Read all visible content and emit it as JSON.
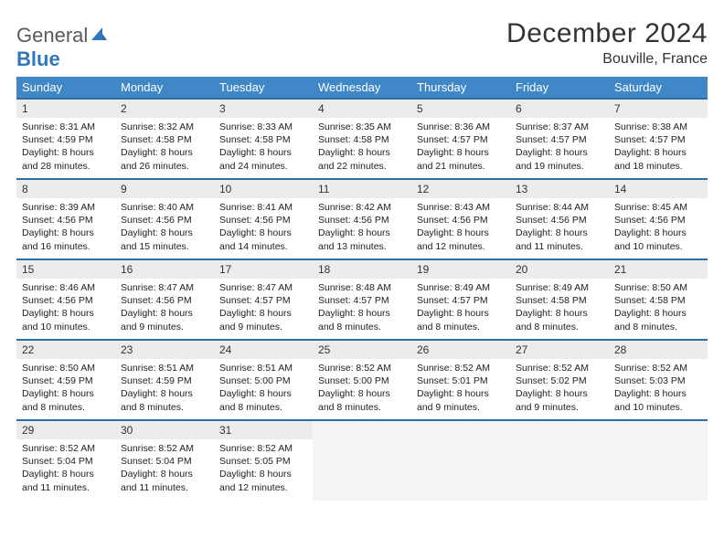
{
  "brand": {
    "word1": "General",
    "word2": "Blue"
  },
  "title": "December 2024",
  "location": "Bouville, France",
  "colors": {
    "header_bg": "#3f87c7",
    "rule": "#2f6ea3",
    "daynum_bg": "#ececec",
    "empty_bg": "#f5f5f5",
    "text": "#222222",
    "logo_gray": "#5a5a5a",
    "logo_blue": "#2f78bd"
  },
  "columns": [
    "Sunday",
    "Monday",
    "Tuesday",
    "Wednesday",
    "Thursday",
    "Friday",
    "Saturday"
  ],
  "weeks": [
    [
      {
        "n": "1",
        "sunrise": "8:31 AM",
        "sunset": "4:59 PM",
        "daylight": "8 hours and 28 minutes."
      },
      {
        "n": "2",
        "sunrise": "8:32 AM",
        "sunset": "4:58 PM",
        "daylight": "8 hours and 26 minutes."
      },
      {
        "n": "3",
        "sunrise": "8:33 AM",
        "sunset": "4:58 PM",
        "daylight": "8 hours and 24 minutes."
      },
      {
        "n": "4",
        "sunrise": "8:35 AM",
        "sunset": "4:58 PM",
        "daylight": "8 hours and 22 minutes."
      },
      {
        "n": "5",
        "sunrise": "8:36 AM",
        "sunset": "4:57 PM",
        "daylight": "8 hours and 21 minutes."
      },
      {
        "n": "6",
        "sunrise": "8:37 AM",
        "sunset": "4:57 PM",
        "daylight": "8 hours and 19 minutes."
      },
      {
        "n": "7",
        "sunrise": "8:38 AM",
        "sunset": "4:57 PM",
        "daylight": "8 hours and 18 minutes."
      }
    ],
    [
      {
        "n": "8",
        "sunrise": "8:39 AM",
        "sunset": "4:56 PM",
        "daylight": "8 hours and 16 minutes."
      },
      {
        "n": "9",
        "sunrise": "8:40 AM",
        "sunset": "4:56 PM",
        "daylight": "8 hours and 15 minutes."
      },
      {
        "n": "10",
        "sunrise": "8:41 AM",
        "sunset": "4:56 PM",
        "daylight": "8 hours and 14 minutes."
      },
      {
        "n": "11",
        "sunrise": "8:42 AM",
        "sunset": "4:56 PM",
        "daylight": "8 hours and 13 minutes."
      },
      {
        "n": "12",
        "sunrise": "8:43 AM",
        "sunset": "4:56 PM",
        "daylight": "8 hours and 12 minutes."
      },
      {
        "n": "13",
        "sunrise": "8:44 AM",
        "sunset": "4:56 PM",
        "daylight": "8 hours and 11 minutes."
      },
      {
        "n": "14",
        "sunrise": "8:45 AM",
        "sunset": "4:56 PM",
        "daylight": "8 hours and 10 minutes."
      }
    ],
    [
      {
        "n": "15",
        "sunrise": "8:46 AM",
        "sunset": "4:56 PM",
        "daylight": "8 hours and 10 minutes."
      },
      {
        "n": "16",
        "sunrise": "8:47 AM",
        "sunset": "4:56 PM",
        "daylight": "8 hours and 9 minutes."
      },
      {
        "n": "17",
        "sunrise": "8:47 AM",
        "sunset": "4:57 PM",
        "daylight": "8 hours and 9 minutes."
      },
      {
        "n": "18",
        "sunrise": "8:48 AM",
        "sunset": "4:57 PM",
        "daylight": "8 hours and 8 minutes."
      },
      {
        "n": "19",
        "sunrise": "8:49 AM",
        "sunset": "4:57 PM",
        "daylight": "8 hours and 8 minutes."
      },
      {
        "n": "20",
        "sunrise": "8:49 AM",
        "sunset": "4:58 PM",
        "daylight": "8 hours and 8 minutes."
      },
      {
        "n": "21",
        "sunrise": "8:50 AM",
        "sunset": "4:58 PM",
        "daylight": "8 hours and 8 minutes."
      }
    ],
    [
      {
        "n": "22",
        "sunrise": "8:50 AM",
        "sunset": "4:59 PM",
        "daylight": "8 hours and 8 minutes."
      },
      {
        "n": "23",
        "sunrise": "8:51 AM",
        "sunset": "4:59 PM",
        "daylight": "8 hours and 8 minutes."
      },
      {
        "n": "24",
        "sunrise": "8:51 AM",
        "sunset": "5:00 PM",
        "daylight": "8 hours and 8 minutes."
      },
      {
        "n": "25",
        "sunrise": "8:52 AM",
        "sunset": "5:00 PM",
        "daylight": "8 hours and 8 minutes."
      },
      {
        "n": "26",
        "sunrise": "8:52 AM",
        "sunset": "5:01 PM",
        "daylight": "8 hours and 9 minutes."
      },
      {
        "n": "27",
        "sunrise": "8:52 AM",
        "sunset": "5:02 PM",
        "daylight": "8 hours and 9 minutes."
      },
      {
        "n": "28",
        "sunrise": "8:52 AM",
        "sunset": "5:03 PM",
        "daylight": "8 hours and 10 minutes."
      }
    ],
    [
      {
        "n": "29",
        "sunrise": "8:52 AM",
        "sunset": "5:04 PM",
        "daylight": "8 hours and 11 minutes."
      },
      {
        "n": "30",
        "sunrise": "8:52 AM",
        "sunset": "5:04 PM",
        "daylight": "8 hours and 11 minutes."
      },
      {
        "n": "31",
        "sunrise": "8:52 AM",
        "sunset": "5:05 PM",
        "daylight": "8 hours and 12 minutes."
      },
      null,
      null,
      null,
      null
    ]
  ],
  "labels": {
    "sunrise": "Sunrise:",
    "sunset": "Sunset:",
    "daylight": "Daylight:"
  }
}
